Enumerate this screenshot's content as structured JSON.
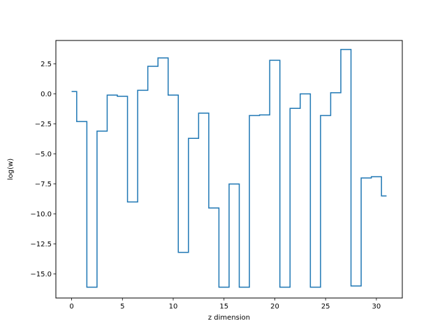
{
  "chart_data": {
    "type": "line",
    "drawstyle": "steps-mid",
    "title": "",
    "xlabel": "z dimension",
    "ylabel": "log(w)",
    "xlim": [
      -1.55,
      32.55
    ],
    "ylim": [
      -17.0,
      4.45
    ],
    "xticks": [
      0,
      5,
      10,
      15,
      20,
      25,
      30
    ],
    "xtick_labels": [
      "0",
      "5",
      "10",
      "15",
      "20",
      "25",
      "30"
    ],
    "yticks": [
      2.5,
      0.0,
      -2.5,
      -5.0,
      -7.5,
      -10.0,
      -12.5,
      -15.0
    ],
    "ytick_labels": [
      "2.5",
      "0.0",
      "−2.5",
      "−5.0",
      "−7.5",
      "−10.0",
      "−12.5",
      "−15.0"
    ],
    "grid": false,
    "series": [
      {
        "color": "#1f77b4",
        "x": [
          0,
          1,
          2,
          3,
          4,
          5,
          6,
          7,
          8,
          9,
          10,
          11,
          12,
          13,
          14,
          15,
          16,
          17,
          18,
          19,
          20,
          21,
          22,
          23,
          24,
          25,
          26,
          27,
          28,
          29,
          30,
          31
        ],
        "y": [
          0.2,
          -2.3,
          -16.1,
          -3.1,
          -0.1,
          -0.2,
          -9.0,
          0.3,
          2.3,
          3.0,
          -0.1,
          -13.2,
          -3.7,
          -1.6,
          -9.5,
          -16.1,
          -7.5,
          -16.1,
          -1.8,
          -1.75,
          2.8,
          -16.1,
          -1.2,
          0.0,
          -16.1,
          -1.8,
          0.1,
          3.7,
          -16.0,
          -7.0,
          -6.9,
          -8.5
        ]
      }
    ]
  }
}
